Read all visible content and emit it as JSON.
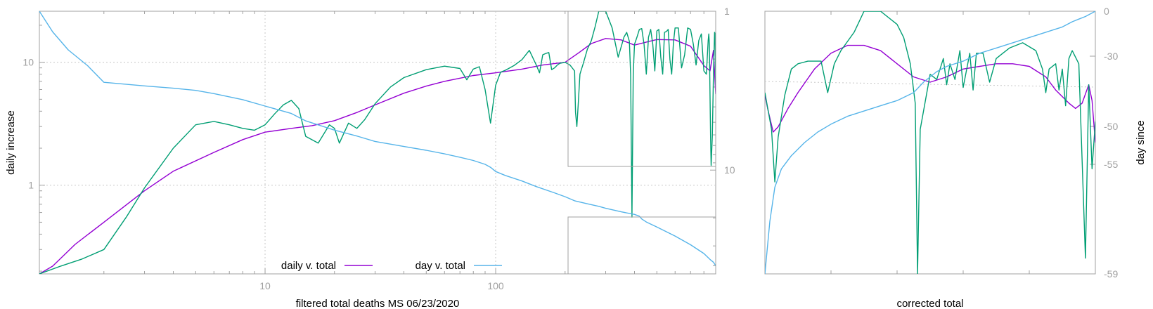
{
  "chart_data": [
    {
      "type": "line",
      "xlabel": "filtered total deaths MS 06/23/2020",
      "ylabel": "daily increase",
      "y2label": "",
      "xscale": "log",
      "yscale": "log",
      "y2scale": "log",
      "xlim": [
        1.05,
        900
      ],
      "ylim": [
        0.19,
        26
      ],
      "y2lim": [
        1,
        45
      ],
      "x_tick_labels": [
        "10",
        "100"
      ],
      "y_tick_labels": [
        "1",
        "10"
      ],
      "y2_tick_labels": [
        "1",
        "10"
      ],
      "grid": true,
      "legend_position": "bottom-center",
      "series": [
        {
          "name": "daily v. total",
          "color": "#9400d3",
          "axis": "y",
          "x": [
            1.05,
            1.2,
            1.5,
            2,
            3,
            4,
            6,
            8,
            10,
            13,
            16,
            20,
            25,
            30,
            40,
            50,
            60,
            80,
            100,
            130,
            160,
            200,
            230,
            260,
            300,
            350,
            400,
            450,
            500,
            600,
            700,
            800,
            850,
            880,
            900
          ],
          "y": [
            0.19,
            0.22,
            0.33,
            0.5,
            0.9,
            1.3,
            1.85,
            2.35,
            2.7,
            2.9,
            3.05,
            3.35,
            3.9,
            4.5,
            5.6,
            6.4,
            7.0,
            7.8,
            8.2,
            8.8,
            9.5,
            10.0,
            12.0,
            14.2,
            15.6,
            15.2,
            13.8,
            14.6,
            15.3,
            15.2,
            13.5,
            9.4,
            8.5,
            12.5,
            5.5
          ]
        },
        {
          "name": "",
          "color": "#009e73",
          "axis": "y",
          "x": [
            1.05,
            1.3,
            1.6,
            2,
            2.5,
            3,
            4,
            5,
            6,
            7,
            8,
            9,
            10,
            11,
            12,
            13,
            14,
            15,
            17,
            19,
            20,
            21,
            23,
            25,
            27,
            30,
            35,
            40,
            50,
            60,
            70,
            75,
            80,
            85,
            90,
            95,
            100,
            105,
            110,
            115,
            120,
            130,
            140,
            150,
            155,
            160,
            165,
            170,
            175,
            180,
            185,
            190,
            200,
            210,
            220,
            222,
            225,
            228,
            232,
            240,
            250,
            260,
            270,
            280,
            285,
            290,
            300,
            320,
            340,
            360,
            370,
            380,
            385,
            390,
            395,
            400,
            410,
            420,
            430,
            440,
            450,
            460,
            470,
            480,
            490,
            500,
            510,
            520,
            530,
            540,
            550,
            560,
            570,
            580,
            590,
            600,
            620,
            640,
            660,
            680,
            700,
            720,
            740,
            760,
            780,
            800,
            820,
            835,
            840,
            845,
            850,
            855,
            860,
            870,
            880,
            890,
            895,
            900
          ],
          "y": [
            0.19,
            0.22,
            0.25,
            0.3,
            0.55,
            0.95,
            2.0,
            3.1,
            3.3,
            3.1,
            2.9,
            2.8,
            3.1,
            3.8,
            4.5,
            4.9,
            4.2,
            2.5,
            2.2,
            3.1,
            2.9,
            2.2,
            3.2,
            2.9,
            3.4,
            4.6,
            6.3,
            7.5,
            8.7,
            9.3,
            8.9,
            7.2,
            8.8,
            9.2,
            6.0,
            3.2,
            6.5,
            8.3,
            8.6,
            9.0,
            9.4,
            10.5,
            12.5,
            9.5,
            8.2,
            11.5,
            11.8,
            12.0,
            8.7,
            9.0,
            9.5,
            9.8,
            10.0,
            9.5,
            8.5,
            3.9,
            3.0,
            4.5,
            8.0,
            9.8,
            12.8,
            15.0,
            19.5,
            26.0,
            26.0,
            26.0,
            26.0,
            19.0,
            11.0,
            16.0,
            17.5,
            14.8,
            8.0,
            0.55,
            8.0,
            14.0,
            16.0,
            18.5,
            18.8,
            14.0,
            8.0,
            16.0,
            18.5,
            14.0,
            8.5,
            18.0,
            18.5,
            11.0,
            8.0,
            17.5,
            17.8,
            18.5,
            10.5,
            8.0,
            14.5,
            19.0,
            19.0,
            9.0,
            11.5,
            19.0,
            18.5,
            14.0,
            9.5,
            15.0,
            17.0,
            8.5,
            8.0,
            15.0,
            17.0,
            14.0,
            5.5,
            2.5,
            1.45,
            2.5,
            8.0,
            17.5,
            17.0,
            6.5
          ]
        },
        {
          "name": "day v. total",
          "color": "#56b4e9",
          "axis": "y2",
          "x": [
            1.05,
            1.2,
            1.4,
            1.7,
            2,
            3,
            4,
            5,
            6,
            8,
            10,
            13,
            15,
            20,
            25,
            30,
            40,
            50,
            60,
            70,
            80,
            90,
            95,
            100,
            110,
            130,
            150,
            180,
            200,
            220,
            250,
            280,
            300,
            350,
            400,
            420,
            430,
            450,
            500,
            600,
            700,
            800,
            850,
            880,
            900
          ],
          "y2": [
            1.0,
            1.35,
            1.75,
            2.2,
            2.8,
            2.95,
            3.05,
            3.15,
            3.3,
            3.6,
            3.95,
            4.4,
            4.9,
            5.6,
            6.1,
            6.6,
            7.1,
            7.5,
            7.9,
            8.3,
            8.7,
            9.2,
            9.6,
            10.2,
            10.8,
            11.7,
            12.7,
            13.9,
            14.7,
            15.6,
            16.3,
            16.9,
            17.4,
            18.3,
            19.0,
            19.5,
            20.3,
            21.2,
            22.8,
            26.0,
            29.5,
            33.5,
            36.5,
            38.0,
            40.0
          ]
        }
      ]
    },
    {
      "type": "line",
      "xlabel": "corrected total",
      "ylabel": "",
      "y2label": "day since",
      "y2_tick_labels": [
        "0",
        "-30",
        "-50",
        "-55",
        "-59"
      ],
      "grid": true,
      "series": [
        {
          "name": "",
          "color": "#9400d3",
          "axis": "y",
          "x": [
            0.0,
            0.01,
            0.025,
            0.04,
            0.07,
            0.1,
            0.15,
            0.2,
            0.25,
            0.3,
            0.35,
            0.4,
            0.45,
            0.5,
            0.55,
            0.6,
            0.65,
            0.7,
            0.75,
            0.8,
            0.85,
            0.88,
            0.92,
            0.94,
            0.96,
            0.98,
            0.99,
            1.0
          ],
          "y": [
            0.32,
            0.38,
            0.46,
            0.44,
            0.37,
            0.31,
            0.22,
            0.16,
            0.13,
            0.13,
            0.15,
            0.2,
            0.25,
            0.27,
            0.25,
            0.22,
            0.21,
            0.2,
            0.2,
            0.21,
            0.25,
            0.3,
            0.35,
            0.37,
            0.35,
            0.28,
            0.34,
            0.5
          ]
        },
        {
          "name": "",
          "color": "#009e73",
          "axis": "y",
          "x": [
            0.0,
            0.02,
            0.03,
            0.04,
            0.06,
            0.08,
            0.1,
            0.13,
            0.17,
            0.19,
            0.21,
            0.23,
            0.27,
            0.3,
            0.35,
            0.4,
            0.42,
            0.44,
            0.455,
            0.462,
            0.47,
            0.5,
            0.52,
            0.54,
            0.55,
            0.56,
            0.575,
            0.59,
            0.6,
            0.62,
            0.63,
            0.64,
            0.66,
            0.68,
            0.7,
            0.72,
            0.74,
            0.78,
            0.82,
            0.84,
            0.85,
            0.86,
            0.88,
            0.89,
            0.9,
            0.91,
            0.92,
            0.93,
            0.95,
            0.97,
            0.98,
            0.99,
            1.0
          ],
          "y": [
            0.31,
            0.45,
            0.65,
            0.48,
            0.32,
            0.22,
            0.2,
            0.19,
            0.19,
            0.31,
            0.2,
            0.15,
            0.08,
            0.0,
            0.0,
            0.05,
            0.1,
            0.2,
            0.35,
            1.0,
            0.45,
            0.24,
            0.26,
            0.18,
            0.28,
            0.2,
            0.26,
            0.15,
            0.29,
            0.16,
            0.3,
            0.16,
            0.16,
            0.27,
            0.18,
            0.16,
            0.14,
            0.12,
            0.15,
            0.22,
            0.31,
            0.22,
            0.2,
            0.3,
            0.22,
            0.36,
            0.18,
            0.15,
            0.2,
            0.94,
            0.28,
            0.6,
            0.42
          ]
        },
        {
          "name": "",
          "color": "#56b4e9",
          "axis": "y",
          "x": [
            0.0,
            0.015,
            0.03,
            0.05,
            0.08,
            0.12,
            0.16,
            0.2,
            0.25,
            0.3,
            0.35,
            0.4,
            0.45,
            0.48,
            0.52,
            0.55,
            0.6,
            0.65,
            0.7,
            0.75,
            0.8,
            0.85,
            0.9,
            0.93,
            0.95,
            0.97,
            1.0
          ],
          "y": [
            1.0,
            0.8,
            0.67,
            0.6,
            0.55,
            0.5,
            0.46,
            0.43,
            0.4,
            0.38,
            0.36,
            0.34,
            0.31,
            0.27,
            0.23,
            0.21,
            0.19,
            0.16,
            0.14,
            0.12,
            0.1,
            0.08,
            0.06,
            0.04,
            0.03,
            0.02,
            0.0
          ]
        }
      ]
    }
  ],
  "legend": {
    "items": [
      {
        "label": "daily v. total",
        "color": "#9400d3"
      },
      {
        "label": "day v. total",
        "color": "#56b4e9"
      }
    ]
  }
}
